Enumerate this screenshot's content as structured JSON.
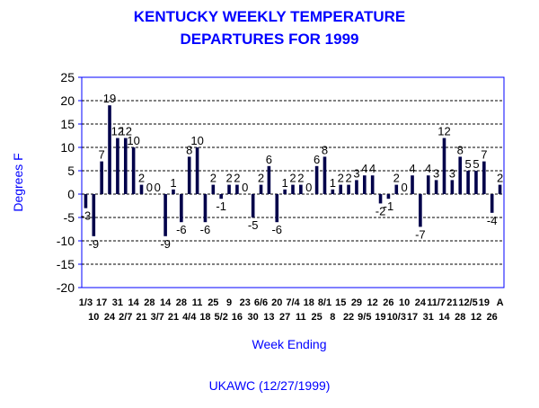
{
  "chart_data": {
    "type": "bar",
    "title_lines": [
      "KENTUCKY WEEKLY TEMPERATURE",
      "DEPARTURES FOR 1999"
    ],
    "xlabel": "Week Ending",
    "ylabel": "Degrees F",
    "footer": "UKAWC (12/27/1999)",
    "ylim": [
      -20,
      25
    ],
    "yticks": [
      25,
      20,
      15,
      10,
      5,
      0,
      -5,
      -10,
      -15,
      -20
    ],
    "grid": true,
    "bar_color": "#00004a",
    "title_color": "#0000ff",
    "frame_color": "#0000ff",
    "x_tick_labels_row1": [
      "1/3",
      "17",
      "31",
      "14",
      "28",
      "14",
      "28",
      "11",
      "25",
      "9",
      "23",
      "6/6",
      "20",
      "7/4",
      "18",
      "8/1",
      "15",
      "29",
      "12",
      "26",
      "10",
      "24",
      "11/7",
      "21",
      "12/5",
      "19",
      "A"
    ],
    "x_tick_labels_row2": [
      "10",
      "24",
      "2/7",
      "21",
      "3/7",
      "21",
      "4/4",
      "18",
      "5/2",
      "16",
      "30",
      "13",
      "27",
      "11",
      "25",
      "8",
      "22",
      "9/5",
      "19",
      "10/3",
      "17",
      "31",
      "14",
      "28",
      "12",
      "26"
    ],
    "weeks": [
      "1/3",
      "1/10",
      "1/17",
      "1/24",
      "1/31",
      "2/7",
      "2/14",
      "2/21",
      "2/28",
      "3/7",
      "3/14",
      "3/21",
      "3/28",
      "4/4",
      "4/11",
      "4/18",
      "4/25",
      "5/2",
      "5/9",
      "5/16",
      "5/23",
      "5/30",
      "6/6",
      "6/13",
      "6/20",
      "6/27",
      "7/4",
      "7/11",
      "7/18",
      "7/25",
      "8/1",
      "8/8",
      "8/15",
      "8/22",
      "8/29",
      "9/5",
      "9/12",
      "9/19",
      "9/26",
      "10/3",
      "10/10",
      "10/17",
      "10/24",
      "10/31",
      "11/7",
      "11/14",
      "11/21",
      "11/28",
      "12/5",
      "12/12",
      "12/19",
      "12/26",
      "A"
    ],
    "values": [
      -3,
      -9,
      7,
      19,
      12,
      12,
      10,
      2,
      0,
      0,
      -9,
      1,
      -6,
      8,
      10,
      -6,
      2,
      -1,
      2,
      2,
      0,
      -5,
      2,
      6,
      -6,
      1,
      2,
      2,
      0,
      6,
      8,
      1,
      2,
      2,
      3,
      4,
      4,
      -2,
      -1,
      2,
      0,
      4,
      -7,
      4,
      3,
      12,
      3,
      8,
      5,
      5,
      7,
      -4,
      2
    ],
    "data_labels": [
      "-3",
      "-9",
      "7",
      "19",
      "12",
      "12",
      "10",
      "2",
      "0",
      "0",
      "-9",
      "1",
      "-6",
      "8",
      "10",
      "-6",
      "2",
      "-1",
      "2",
      "2",
      "0",
      "-5",
      "2",
      "6",
      "-6",
      "1",
      "2",
      "2",
      "0",
      "6",
      "8",
      "1",
      "2",
      "2",
      "3",
      "4",
      "4",
      "-2",
      "-1",
      "2",
      "0",
      "4",
      "-7",
      "4",
      "3",
      "12",
      "3",
      "8",
      "5",
      "5",
      "7",
      "-4",
      "2"
    ]
  }
}
